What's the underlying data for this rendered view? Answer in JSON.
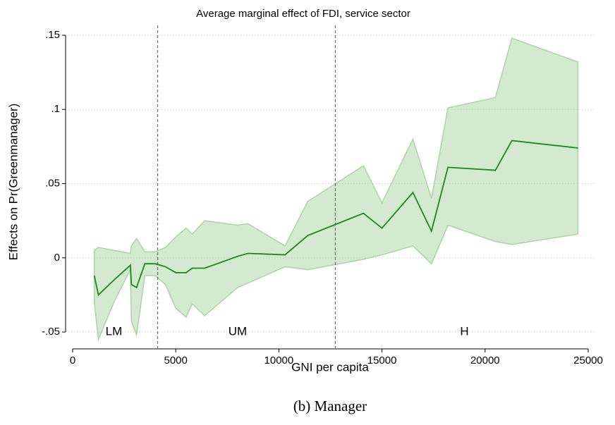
{
  "chart_data": {
    "type": "line",
    "title": "Average marginal effect of FDI, service sector",
    "x_label": "GNI per capita",
    "y_label": "Effects on Pr(Greenmanager)",
    "caption": "(b) Manager",
    "x": [
      1050,
      1250,
      2000,
      2800,
      2850,
      3100,
      3500,
      4000,
      4500,
      5000,
      5500,
      5800,
      6400,
      8000,
      8500,
      10300,
      11400,
      14100,
      15000,
      16500,
      17400,
      18200,
      20500,
      21300,
      24500
    ],
    "values": [
      -0.012,
      -0.025,
      -0.015,
      -0.005,
      -0.018,
      -0.02,
      -0.004,
      -0.004,
      -0.006,
      -0.01,
      -0.01,
      -0.007,
      -0.007,
      0.001,
      0.003,
      0.002,
      0.015,
      0.03,
      0.02,
      0.044,
      0.018,
      0.061,
      0.059,
      0.079,
      0.074
    ],
    "lower": [
      -0.03,
      -0.055,
      -0.03,
      -0.008,
      -0.043,
      -0.052,
      -0.012,
      -0.012,
      -0.018,
      -0.034,
      -0.04,
      -0.031,
      -0.039,
      -0.02,
      -0.017,
      -0.006,
      -0.008,
      -0.001,
      0.002,
      0.008,
      -0.004,
      0.022,
      0.011,
      0.009,
      0.016
    ],
    "upper": [
      0.005,
      0.007,
      0.005,
      0.003,
      0.008,
      0.013,
      0.004,
      0.004,
      0.007,
      0.014,
      0.02,
      0.016,
      0.025,
      0.022,
      0.023,
      0.008,
      0.038,
      0.062,
      0.037,
      0.08,
      0.04,
      0.101,
      0.108,
      0.148,
      0.132
    ],
    "color": "#1a8a1a",
    "band_color": "#a8d5a2",
    "vlines": [
      4125,
      12735
    ],
    "annotations": [
      {
        "text": "LM",
        "x": 2000,
        "y": -0.05
      },
      {
        "text": "UM",
        "x": 8000,
        "y": -0.05
      },
      {
        "text": "H",
        "x": 19000,
        "y": -0.05
      }
    ],
    "xlim": [
      0,
      25000
    ],
    "xticks": [
      0,
      5000,
      10000,
      15000,
      20000,
      25000
    ],
    "ylim": [
      -0.0533,
      0.1595
    ],
    "yticks": [
      {
        "value": -0.05,
        "label": "-.05"
      },
      0,
      {
        "value": 0.05,
        "label": ".05"
      },
      {
        "value": 0.1,
        "label": ".1"
      },
      {
        "value": 0.15,
        "label": ".15"
      }
    ],
    "grid": true
  }
}
